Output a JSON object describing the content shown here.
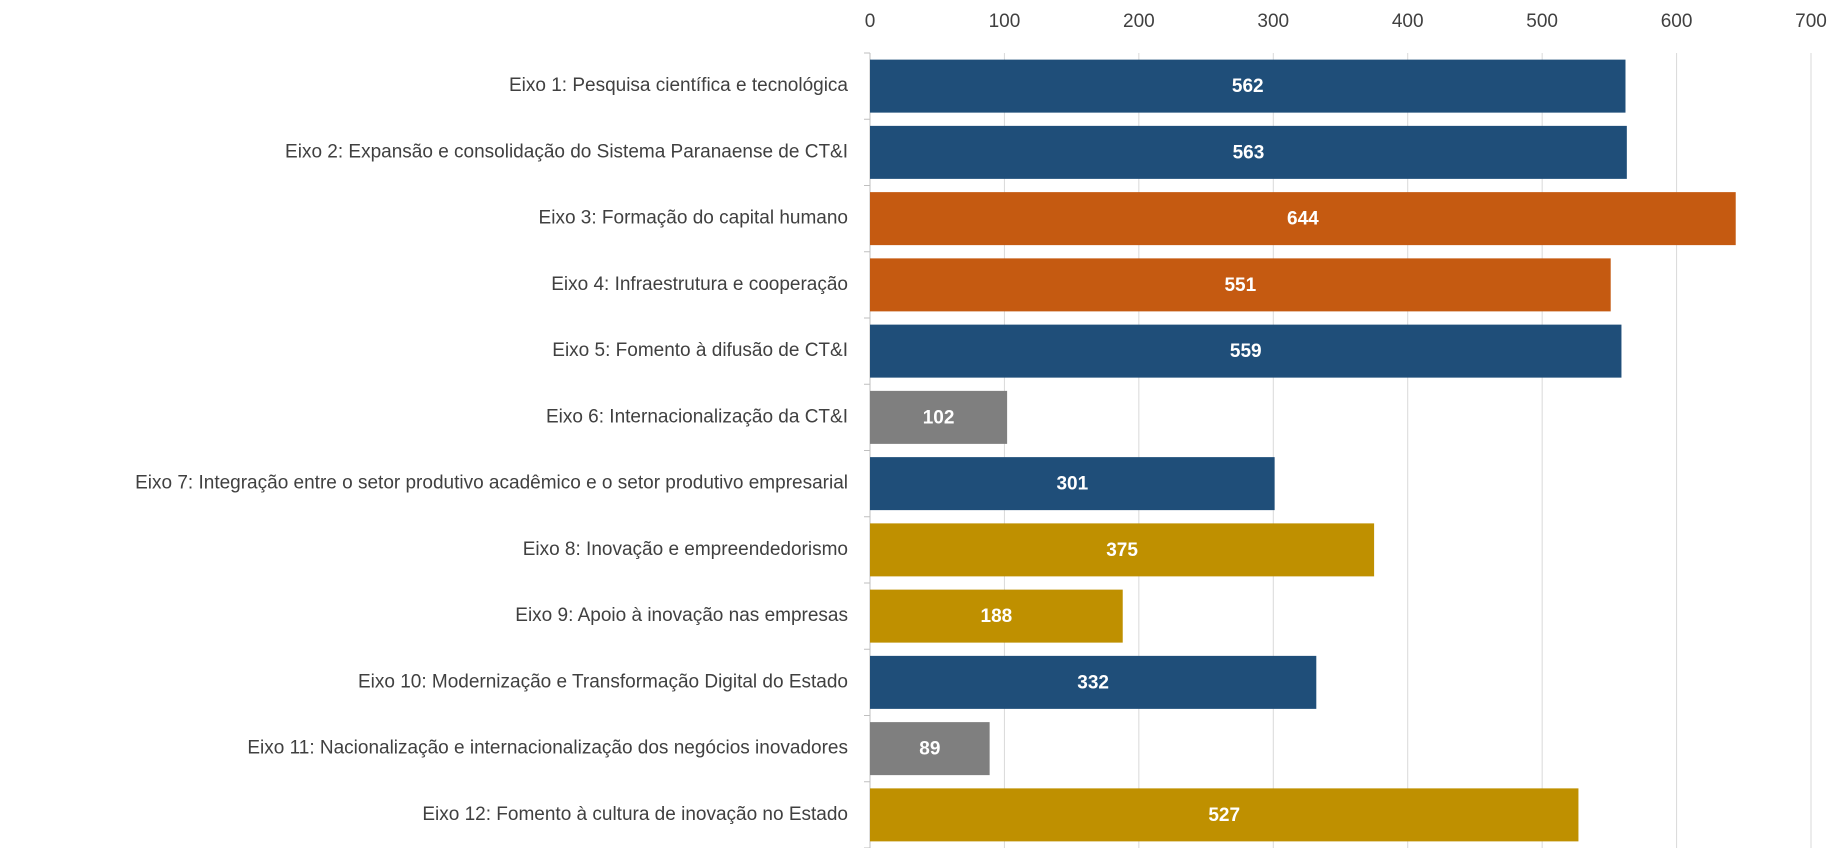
{
  "chart_data": {
    "type": "bar",
    "orientation": "horizontal",
    "categories": [
      "Eixo 1: Pesquisa científica e tecnológica",
      "Eixo 2: Expansão e consolidação do Sistema Paranaense de CT&I",
      "Eixo 3: Formação do capital humano",
      "Eixo 4: Infraestrutura e cooperação",
      "Eixo 5: Fomento à difusão de CT&I",
      "Eixo 6: Internacionalização da CT&I",
      "Eixo 7: Integração entre o setor produtivo acadêmico e o setor produtivo empresarial",
      "Eixo 8: Inovação e empreendedorismo",
      "Eixo 9: Apoio à inovação nas empresas",
      "Eixo 10: Modernização e Transformação Digital do Estado",
      "Eixo 11: Nacionalização e internacionalização dos negócios inovadores",
      "Eixo 12: Fomento à cultura de inovação no Estado"
    ],
    "values": [
      562,
      563,
      644,
      551,
      559,
      102,
      301,
      375,
      188,
      332,
      89,
      527
    ],
    "colors": [
      "#1f4e79",
      "#1f4e79",
      "#c55a11",
      "#c55a11",
      "#1f4e79",
      "#7f7f7f",
      "#1f4e79",
      "#bf9000",
      "#bf9000",
      "#1f4e79",
      "#7f7f7f",
      "#bf9000"
    ],
    "xlim": [
      0,
      700
    ],
    "xticks": [
      0,
      100,
      200,
      300,
      400,
      500,
      600,
      700
    ],
    "grid": true,
    "axis_position": "top"
  }
}
